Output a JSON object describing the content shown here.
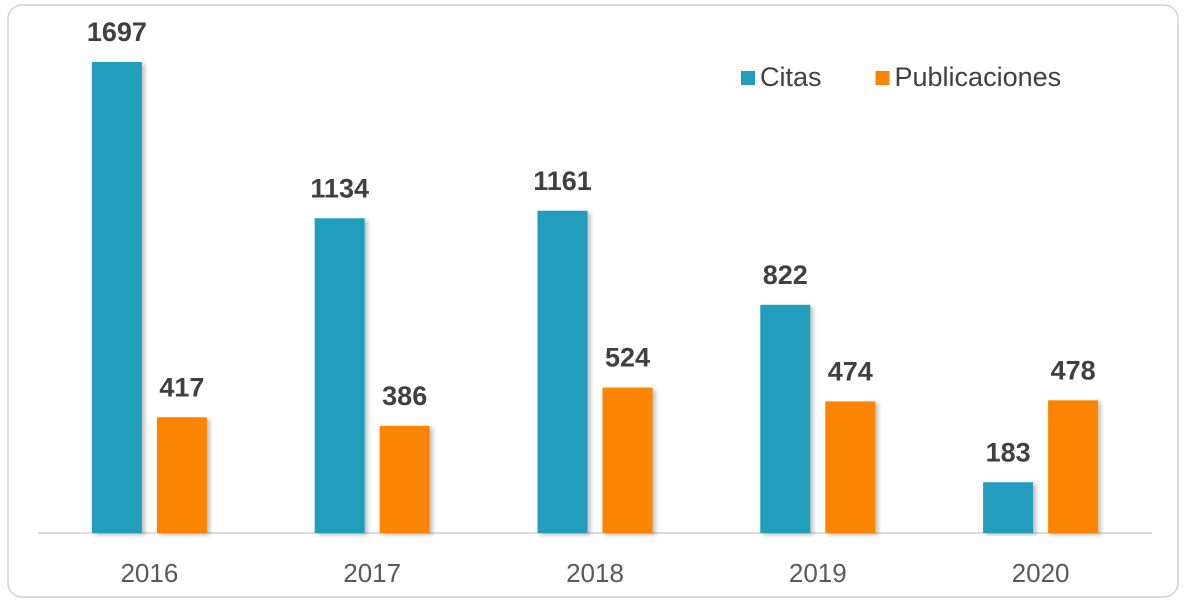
{
  "chart_data": {
    "type": "bar",
    "categories": [
      "2016",
      "2017",
      "2018",
      "2019",
      "2020"
    ],
    "series": [
      {
        "name": "Citas",
        "color": "#219ebc",
        "values": [
          1697,
          1134,
          1161,
          822,
          183
        ]
      },
      {
        "name": "Publicaciones",
        "color": "#fb8500",
        "values": [
          417,
          386,
          524,
          474,
          478
        ]
      }
    ],
    "legend": "top-right"
  }
}
